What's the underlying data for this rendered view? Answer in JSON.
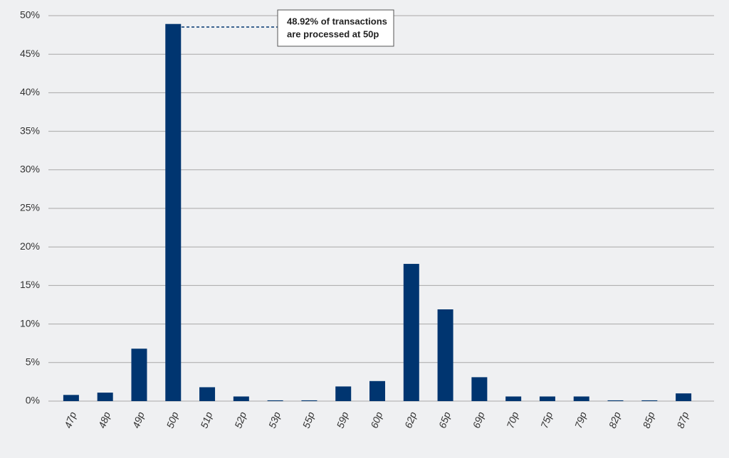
{
  "chart_data": {
    "type": "bar",
    "annotation": [
      "48.92% of transactions",
      "are processed at 50p"
    ],
    "categories": [
      "47p",
      "48p",
      "49p",
      "50p",
      "51p",
      "52p",
      "53p",
      "55p",
      "59p",
      "60p",
      "62p",
      "65p",
      "69p",
      "70p",
      "75p",
      "79p",
      "82p",
      "85p",
      "87p"
    ],
    "values": [
      0.8,
      1.1,
      6.8,
      48.92,
      1.8,
      0.6,
      0.1,
      0.1,
      1.9,
      2.6,
      17.8,
      11.9,
      3.1,
      0.6,
      0.6,
      0.6,
      0.1,
      0.1,
      1.0
    ],
    "color": "#003570",
    "ylim": [
      0,
      50
    ],
    "yticks": [
      {
        "value": 0,
        "label": "0%"
      },
      {
        "value": 5,
        "label": "5%"
      },
      {
        "value": 10,
        "label": "10%"
      },
      {
        "value": 15,
        "label": "15%"
      },
      {
        "value": 20,
        "label": "20%"
      },
      {
        "value": 25,
        "label": "25%"
      },
      {
        "value": 30,
        "label": "30%"
      },
      {
        "value": 35,
        "label": "35%"
      },
      {
        "value": 40,
        "label": "40%"
      },
      {
        "value": 45,
        "label": "45%"
      },
      {
        "value": 50,
        "label": "50%"
      }
    ],
    "grid": true
  }
}
